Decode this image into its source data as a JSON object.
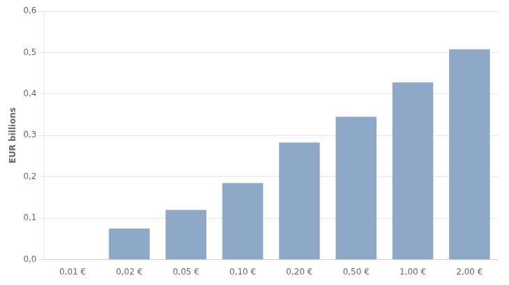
{
  "chart_data": {
    "type": "bar",
    "categories": [
      "0,01 €",
      "0,02 €",
      "0,05 €",
      "0,10 €",
      "0,20 €",
      "0,50 €",
      "1,00 €",
      "2,00 €"
    ],
    "values": [
      0.0,
      0.075,
      0.12,
      0.185,
      0.283,
      0.345,
      0.428,
      0.508
    ],
    "color": "#8fa8c8",
    "ylabel": "EUR billions",
    "ylim": [
      0,
      0.6
    ],
    "yticks": [
      {
        "value": 0.0,
        "label": "0,0"
      },
      {
        "value": 0.1,
        "label": "0,1"
      },
      {
        "value": 0.2,
        "label": "0,2"
      },
      {
        "value": 0.3,
        "label": "0,3"
      },
      {
        "value": 0.4,
        "label": "0,4"
      },
      {
        "value": 0.5,
        "label": "0,5"
      },
      {
        "value": 0.6,
        "label": "0,6"
      }
    ],
    "grid": true
  }
}
